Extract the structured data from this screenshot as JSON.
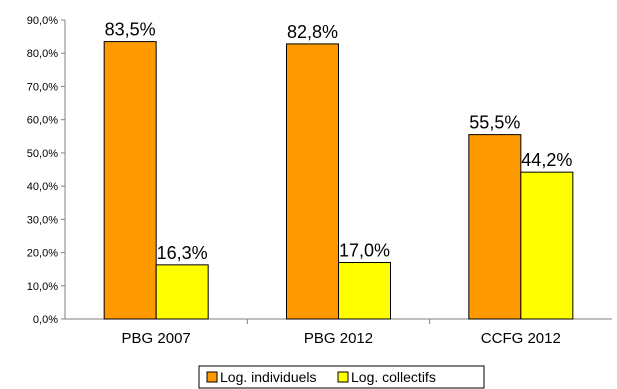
{
  "chart_data": {
    "type": "bar",
    "categories": [
      "PBG 2007",
      "PBG 2012",
      "CCFG 2012"
    ],
    "series": [
      {
        "name": "Log. individuels",
        "color": "#ff9900",
        "values": [
          83.5,
          82.8,
          55.5
        ],
        "labels": [
          "83,5%",
          "82,8%",
          "55,5%"
        ]
      },
      {
        "name": "Log. collectifs",
        "color": "#ffff00",
        "values": [
          16.3,
          17.0,
          44.2
        ],
        "labels": [
          "16,3%",
          "17,0%",
          "44,2%"
        ]
      }
    ],
    "ylim": [
      0,
      90
    ],
    "yticks": [
      0,
      10,
      20,
      30,
      40,
      50,
      60,
      70,
      80,
      90
    ],
    "ytick_labels": [
      "0,0%",
      "10,0%",
      "20,0%",
      "30,0%",
      "40,0%",
      "50,0%",
      "60,0%",
      "70,0%",
      "80,0%",
      "90,0%"
    ],
    "title": "",
    "xlabel": "",
    "ylabel": "",
    "grid": false,
    "legend_position": "bottom"
  }
}
